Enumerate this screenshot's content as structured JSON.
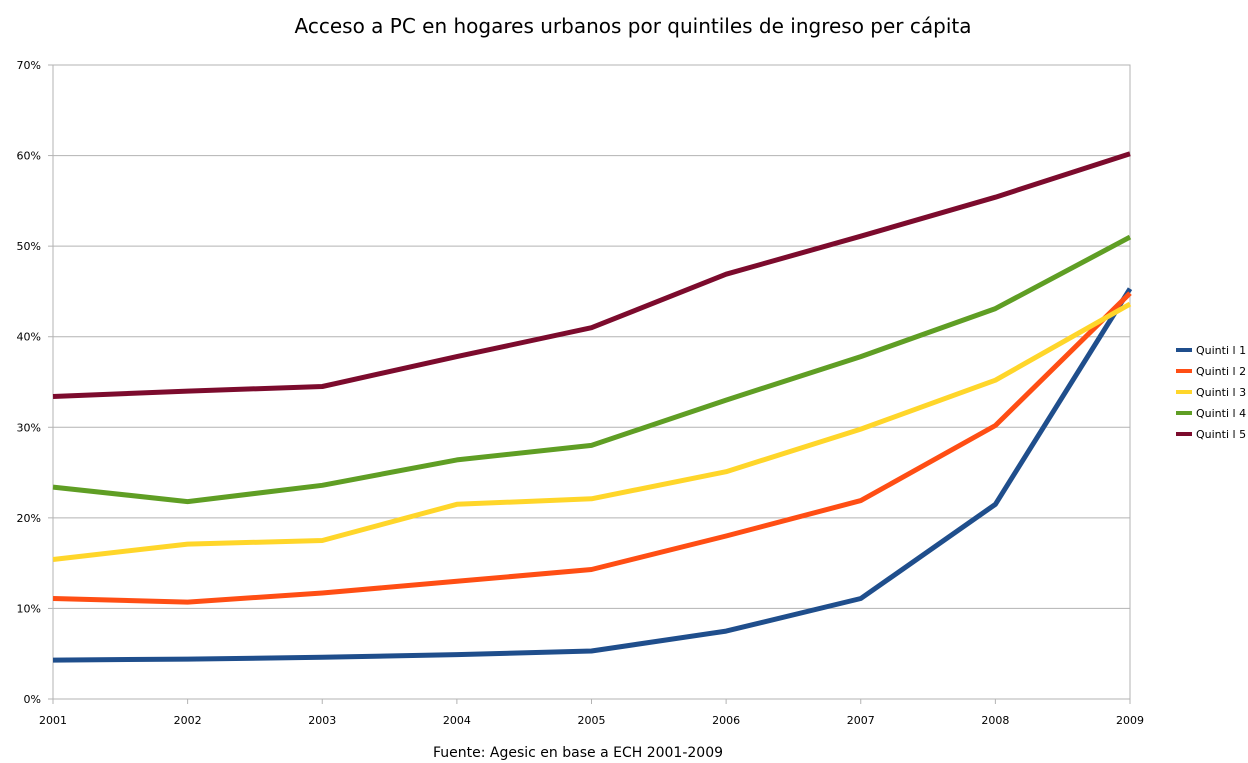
{
  "chart_data": {
    "type": "line",
    "title": "Acceso a PC en hogares urbanos por quintiles de ingreso per cápita",
    "source": "Fuente: Agesic en base a ECH 2001-2009",
    "xlabel": "",
    "ylabel": "",
    "x": [
      "2001",
      "2002",
      "2003",
      "2004",
      "2005",
      "2006",
      "2007",
      "2008",
      "2009"
    ],
    "ylim": [
      0,
      70
    ],
    "yticks": [
      0,
      10,
      20,
      30,
      40,
      50,
      60,
      70
    ],
    "ytick_labels": [
      "0%",
      "10%",
      "20%",
      "30%",
      "40%",
      "50%",
      "60%",
      "70%"
    ],
    "grid": true,
    "legend_position": "right",
    "series": [
      {
        "name": "Quinti l 1",
        "color": "#1f4e8c",
        "values": [
          4.3,
          4.4,
          4.6,
          4.9,
          5.3,
          7.5,
          11.1,
          21.5,
          45.3
        ]
      },
      {
        "name": "Quinti l 2",
        "color": "#ff4e14",
        "values": [
          11.1,
          10.7,
          11.7,
          13.0,
          14.3,
          18.0,
          21.9,
          30.2,
          44.8
        ]
      },
      {
        "name": "Quinti l 3",
        "color": "#ffd62a",
        "values": [
          15.4,
          17.1,
          17.5,
          21.5,
          22.1,
          25.1,
          29.8,
          35.2,
          43.6
        ]
      },
      {
        "name": "Quinti l 4",
        "color": "#5f9e24",
        "values": [
          23.4,
          21.8,
          23.6,
          26.4,
          28.0,
          33.0,
          37.8,
          43.1,
          51.0
        ]
      },
      {
        "name": "Quinti l 5",
        "color": "#7c0b2d",
        "values": [
          33.4,
          34.0,
          34.5,
          37.8,
          41.0,
          46.9,
          51.1,
          55.4,
          60.2
        ]
      }
    ]
  }
}
